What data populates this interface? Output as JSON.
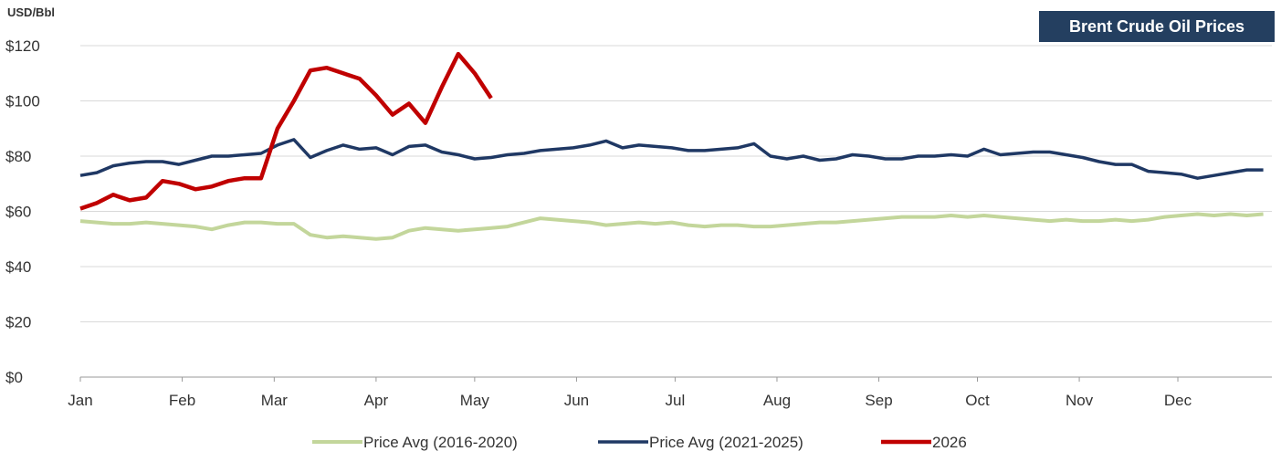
{
  "chart_data": {
    "type": "line",
    "title": "Brent Crude Oil Prices",
    "y_axis_label": "USD/Bbl",
    "xlim": [
      1,
      365
    ],
    "xticks": [
      {
        "value": 1,
        "label": "Jan"
      },
      {
        "value": 32,
        "label": "Feb"
      },
      {
        "value": 60,
        "label": "Mar"
      },
      {
        "value": 91,
        "label": "Apr"
      },
      {
        "value": 121,
        "label": "May"
      },
      {
        "value": 152,
        "label": "Jun"
      },
      {
        "value": 182,
        "label": "Jul"
      },
      {
        "value": 213,
        "label": "Aug"
      },
      {
        "value": 244,
        "label": "Sep"
      },
      {
        "value": 274,
        "label": "Oct"
      },
      {
        "value": 305,
        "label": "Nov"
      },
      {
        "value": 335,
        "label": "Dec"
      }
    ],
    "ylim": [
      0,
      120
    ],
    "yticks": [
      {
        "value": 0,
        "label": "$0"
      },
      {
        "value": 20,
        "label": "$20"
      },
      {
        "value": 40,
        "label": "$40"
      },
      {
        "value": 60,
        "label": "$60"
      },
      {
        "value": 80,
        "label": "$80"
      },
      {
        "value": 100,
        "label": "$100"
      },
      {
        "value": 120,
        "label": "$120"
      }
    ],
    "grid": true,
    "legend": "bottom",
    "x": [
      1,
      6,
      11,
      16,
      21,
      26,
      31,
      36,
      41,
      46,
      51,
      56,
      61,
      66,
      71,
      76,
      81,
      86,
      91,
      96,
      101,
      106,
      111,
      116,
      121,
      126,
      131,
      136,
      141,
      146,
      151,
      156,
      161,
      166,
      171,
      176,
      181,
      186,
      191,
      196,
      201,
      206,
      211,
      216,
      221,
      226,
      231,
      236,
      241,
      246,
      251,
      256,
      261,
      266,
      271,
      276,
      281,
      286,
      291,
      296,
      301,
      306,
      311,
      316,
      321,
      326,
      331,
      336,
      341,
      346,
      351,
      356,
      361
    ],
    "series": [
      {
        "name": "Price Avg (2016-2020)",
        "color": "#c3d69b",
        "width": 4,
        "values": [
          56.5,
          56,
          55.5,
          55.5,
          56,
          55.5,
          55,
          54.5,
          53.5,
          55,
          56,
          56,
          55.5,
          55.5,
          51.5,
          50.5,
          51,
          50.5,
          50,
          50.5,
          53,
          54,
          53.5,
          53,
          53.5,
          54,
          54.5,
          56,
          57.5,
          57,
          56.5,
          56,
          55,
          55.5,
          56,
          55.5,
          56,
          55,
          54.5,
          55,
          55,
          54.5,
          54.5,
          55,
          55.5,
          56,
          56,
          56.5,
          57,
          57.5,
          58,
          58,
          58,
          58.5,
          58,
          58.5,
          58,
          57.5,
          57,
          56.5,
          57,
          56.5,
          56.5,
          57,
          56.5,
          57,
          58,
          58.5,
          59,
          58.5,
          59,
          58.5,
          59
        ]
      },
      {
        "name": "Price Avg (2021-2025)",
        "color": "#1f3864",
        "width": 3.5,
        "values": [
          73,
          74,
          76.5,
          77.5,
          78,
          78,
          77,
          78.5,
          80,
          80,
          80.5,
          81,
          84,
          86,
          79.5,
          82,
          84,
          82.5,
          83,
          80.5,
          83.5,
          84,
          81.5,
          80.5,
          79,
          79.5,
          80.5,
          81,
          82,
          82.5,
          83,
          84,
          85.5,
          83,
          84,
          83.5,
          83,
          82,
          82,
          82.5,
          83,
          84.5,
          80,
          79,
          80,
          78.5,
          79,
          80.5,
          80,
          79,
          79,
          80,
          80,
          80.5,
          80,
          82.5,
          80.5,
          81,
          81.5,
          81.5,
          80.5,
          79.5,
          78,
          77,
          77,
          74.5,
          74,
          73.5,
          72,
          73,
          74,
          75,
          75
        ]
      },
      {
        "name": "2026",
        "color": "#c00000",
        "width": 4.5,
        "values": [
          61,
          63,
          66,
          64,
          65,
          71,
          70,
          68,
          69,
          71,
          72,
          72,
          90,
          100,
          111,
          112,
          110,
          108,
          102,
          95,
          99,
          92,
          105,
          117,
          110,
          101,
          null,
          null,
          null,
          null,
          null,
          null,
          null,
          null,
          null,
          null,
          null,
          null,
          null,
          null,
          null,
          null,
          null,
          null,
          null,
          null,
          null,
          null,
          null,
          null,
          null,
          null,
          null,
          null,
          null,
          null,
          null,
          null,
          null,
          null,
          null,
          null,
          null,
          null,
          null,
          null,
          null,
          null,
          null,
          null,
          null,
          null,
          null
        ]
      }
    ]
  }
}
